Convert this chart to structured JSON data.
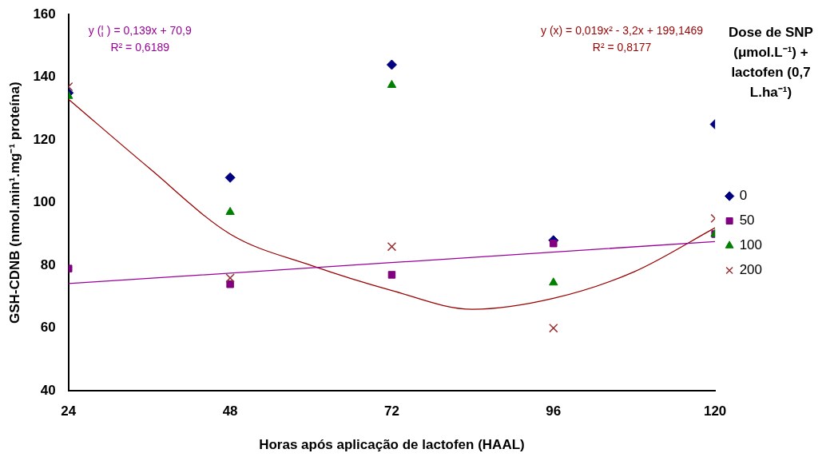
{
  "chart_data": {
    "type": "scatter",
    "xlabel": "Horas após aplicação de lactofen (HAAL)",
    "ylabel": "GSH-CDNB (nmol.min¹.mg⁻¹ proteína)",
    "legend_title": "Dose de SNP (μmol.L⁻¹) + lactofen (0,7 L.ha⁻¹)",
    "x": [
      24,
      48,
      72,
      96,
      120
    ],
    "xlim": [
      24,
      120
    ],
    "xticks": [
      24,
      48,
      72,
      96,
      120
    ],
    "ylim": [
      40,
      160
    ],
    "yticks": [
      40,
      60,
      80,
      100,
      120,
      140,
      160
    ],
    "grid": false,
    "legend": "right",
    "series": [
      {
        "name": "0",
        "color": "#000080",
        "marker": "diamond",
        "values": [
          135,
          108,
          144,
          88,
          125
        ]
      },
      {
        "name": "50",
        "color": "#800080",
        "marker": "square",
        "values": [
          79,
          74,
          77,
          87,
          90
        ]
      },
      {
        "name": "100",
        "color": "#008000",
        "marker": "triangle",
        "values": [
          134,
          97,
          137.5,
          74.5,
          90
        ]
      },
      {
        "name": "200",
        "color": "#993333",
        "marker": "cross",
        "values": [
          137,
          76,
          86,
          60,
          95
        ]
      },
      {
        "type": "line",
        "color": "#990099",
        "marker": "none",
        "x": [
          24,
          120
        ],
        "values": [
          74.2,
          87.6
        ]
      },
      {
        "type": "line",
        "color": "#990000",
        "marker": "none",
        "x": [
          24,
          36,
          48,
          60,
          72,
          84,
          96,
          108,
          120
        ],
        "values": [
          133,
          111,
          90,
          80,
          72,
          66,
          69.5,
          78,
          92
        ]
      }
    ],
    "annotations": [
      "y (¦ ) = 0,139x + 70,9\nR² = 0,6189",
      "y (x) = 0,019x² - 3,2x + 199,1469\nR² = 0,8177"
    ]
  }
}
